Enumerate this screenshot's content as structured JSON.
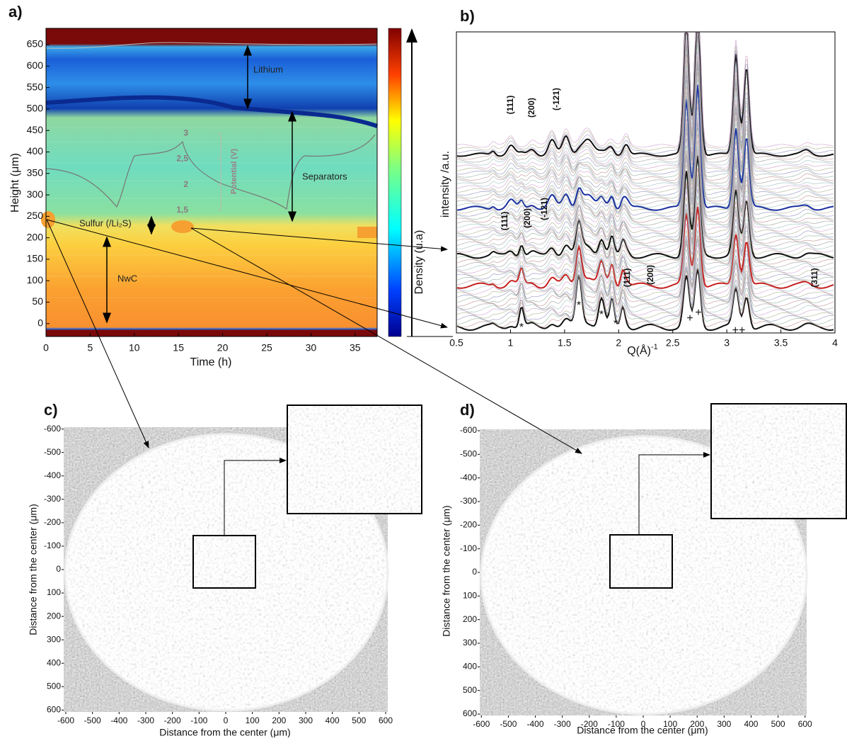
{
  "panels": {
    "a": {
      "label": "a)",
      "ylabel": "Height (μm)",
      "xlabel": "Time (h)",
      "xlim": [
        0,
        37.5
      ],
      "ylim": [
        -30,
        688
      ],
      "xticks": [
        0,
        5,
        10,
        15,
        20,
        25,
        30,
        35
      ],
      "yticks": [
        0,
        50,
        100,
        150,
        200,
        250,
        300,
        350,
        400,
        450,
        500,
        550,
        600,
        650
      ],
      "colorbar_label": "Density (u.a)",
      "potential": {
        "label": "Potential (V)",
        "ylim": [
          1.4,
          3.1
        ],
        "yticks": [
          3,
          {
            "value": 2.5,
            "label": "2,5"
          },
          2,
          {
            "value": 1.5,
            "label": "1,5"
          }
        ]
      },
      "annotations": [
        "Lithium",
        "Separators",
        "Sulfur (/Li₂S)",
        "NwC"
      ]
    },
    "b": {
      "label": "b)",
      "ylabel": "intensity /a.u.",
      "xlabel": "Q(Å)",
      "xlabel_exponent": "-1",
      "xlim": [
        0.5,
        4
      ],
      "xticks": [
        0.5,
        1,
        1.5,
        2,
        2.5,
        3,
        3.5,
        4
      ],
      "peak_labels": [
        "(111)",
        "(200)",
        "(-121)",
        "(111)",
        "(200)",
        "(-121)",
        "(111)",
        "(200)",
        "(311)"
      ],
      "markers": [
        "*",
        "*",
        "*",
        "*",
        "+",
        "+",
        "++"
      ]
    },
    "c": {
      "label": "c)",
      "xlabel": "Distance from the center (μm)",
      "ylabel": "Distance from the center (μm)",
      "xlim": [
        -608,
        608
      ],
      "ylim": [
        -608,
        608
      ],
      "xticks": [
        -600,
        -500,
        -400,
        -300,
        -200,
        -100,
        0,
        100,
        200,
        300,
        400,
        500,
        600
      ],
      "yticks": [
        -600,
        -500,
        -400,
        -300,
        -200,
        -100,
        0,
        100,
        200,
        300,
        400,
        500,
        600
      ]
    },
    "d": {
      "label": "d)",
      "xlabel": "Distance from the center (μm)",
      "ylabel": "Distance from the center (μm)",
      "xlim": [
        -606,
        606
      ],
      "ylim": [
        -606,
        606
      ],
      "xticks": [
        -600,
        -500,
        -400,
        -300,
        -200,
        -100,
        0,
        100,
        200,
        300,
        400,
        500,
        600
      ],
      "yticks": [
        -600,
        -500,
        -400,
        -300,
        -200,
        -100,
        0,
        100,
        200,
        300,
        400,
        500,
        600
      ]
    }
  }
}
